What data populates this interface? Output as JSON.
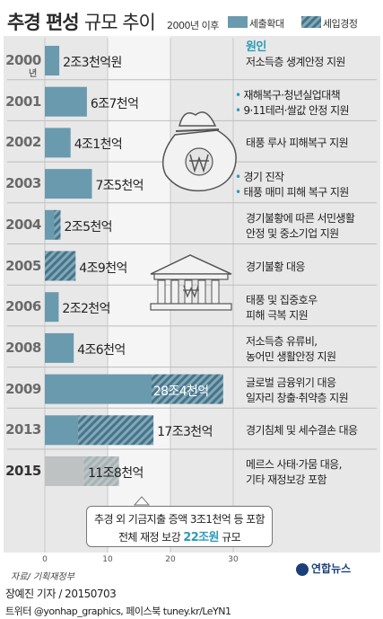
{
  "header": {
    "title_main": "추경 편성",
    "title_sub": "규모 추이",
    "period": "2000년 이후"
  },
  "legend": [
    {
      "label": "세출확대",
      "pattern": "solid",
      "color": "#6a9aae"
    },
    {
      "label": "세입경정",
      "pattern": "hatched",
      "color": "#6a9aae"
    }
  ],
  "colors": {
    "expenditure": "#6a9aae",
    "revenue_hatch": "#7fa9bc",
    "revenue_bg": "#4a7486",
    "highlight_bar": "#d8cfc8",
    "accent": "#2e9bb8",
    "panel": "#e8e8e8",
    "band": "#f5f5f5"
  },
  "reasons_header": "원인",
  "callout": {
    "line1": "추경 외 기금지출 증액 3조1천억 등 포함",
    "line2_prefix": "전체 재정 보강",
    "line2_amount": "22조원",
    "line2_suffix": "규모"
  },
  "chart_data": {
    "type": "bar",
    "orientation": "horizontal",
    "unit": "조원",
    "xlim": [
      0,
      30
    ],
    "x_ticks": [
      "0",
      "10",
      "20",
      "30"
    ],
    "legend": [
      "세출확대",
      "세입경정"
    ],
    "categories": [
      "2000",
      "2001",
      "2002",
      "2003",
      "2004",
      "2005",
      "2006",
      "2008",
      "2009",
      "2013",
      "2015"
    ],
    "category_suffix": {
      "2000": "년"
    },
    "series": [
      {
        "name": "세출확대",
        "values": [
          2.3,
          6.7,
          4.1,
          7.5,
          1.5,
          0.0,
          2.2,
          4.6,
          17.0,
          5.3,
          6.2
        ]
      },
      {
        "name": "세입경정",
        "values": [
          0.0,
          0.0,
          0.0,
          0.0,
          1.0,
          4.9,
          0.0,
          0.0,
          11.4,
          12.0,
          5.6
        ]
      }
    ],
    "totals": [
      2.3,
      6.7,
      4.1,
      7.5,
      2.5,
      4.9,
      2.2,
      4.6,
      28.4,
      17.3,
      11.8
    ],
    "value_labels": [
      "2조3천억원",
      "6조7천억",
      "4조1천억",
      "7조5천억",
      "2조5천억",
      "4조9천억",
      "2조2천억",
      "4조6천억",
      "28조4천억",
      "17조3천억",
      "11조8천억"
    ],
    "reasons": [
      [
        "저소득층 생계안정 지원"
      ],
      [
        "재해복구·청년실업대책",
        "9·11테러·쌀값 안정 지원"
      ],
      [
        "태풍 루사 피해복구 지원"
      ],
      [
        "경기 진작",
        "태풍 매미 피해 복구 지원"
      ],
      [
        "경기불황에 따른 서민생활",
        "안정 및 중소기업 지원"
      ],
      [
        "경기불황 대응"
      ],
      [
        "태풍 및 집중호우",
        "피해 극복 지원"
      ],
      [
        "저소득층 유류비,",
        "농어민 생활안정 지원"
      ],
      [
        "글로벌 금융위기 대응",
        "일자리 창출·취약층 지원"
      ],
      [
        "경기침체 및 세수결손 대응"
      ],
      [
        "메르스 사태·가뭄 대응,",
        "기타 재정보강 포함"
      ]
    ],
    "reasons_bulleted": [
      false,
      true,
      false,
      true,
      false,
      false,
      false,
      false,
      false,
      false,
      false
    ],
    "highlight_category": "2015"
  },
  "footer": {
    "source": "자료/ 기획재정부",
    "logo": "연합뉴스",
    "credit": "장예진 기자 / 20150703",
    "social": "트위터 @yonhap_graphics, 페이스북 tuney.kr/LeYN1"
  }
}
